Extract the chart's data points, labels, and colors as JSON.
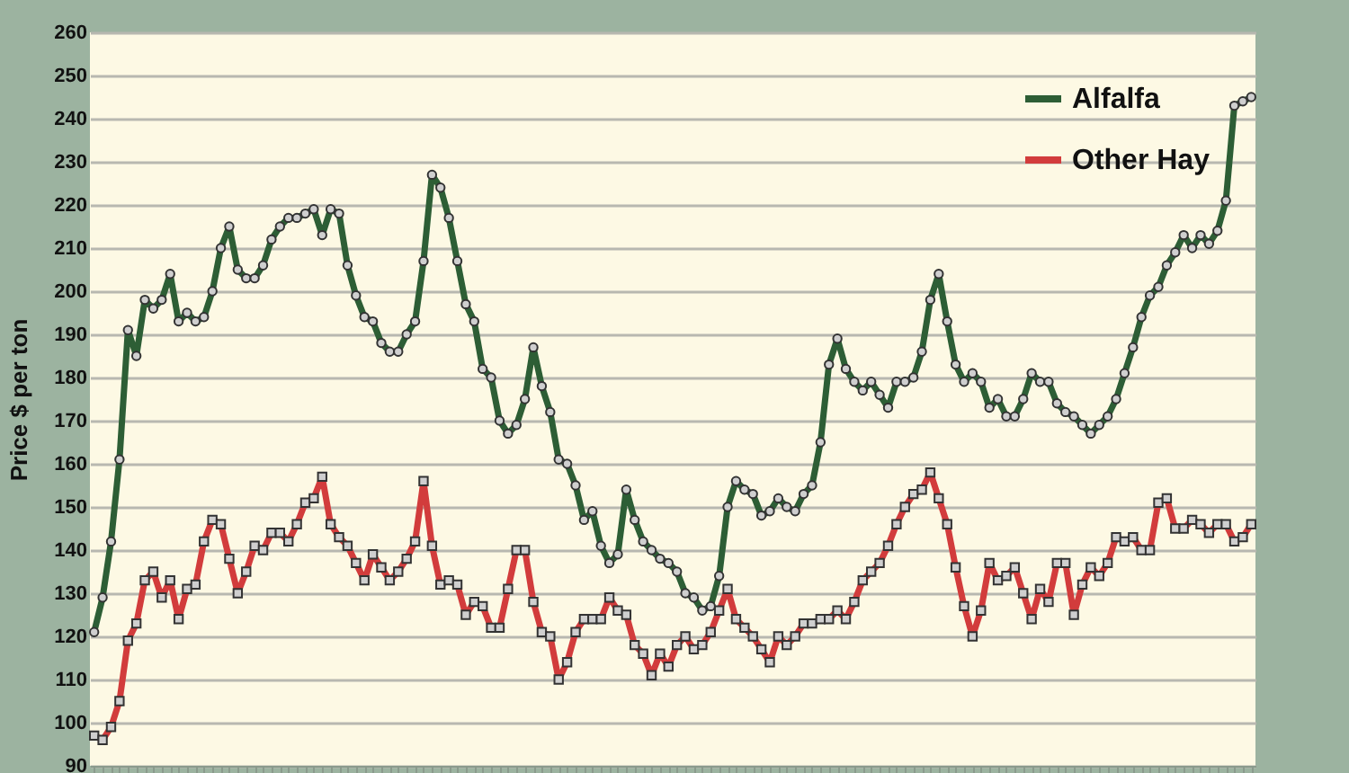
{
  "chart_data": {
    "type": "line",
    "ylabel": "Price $ per ton",
    "categories": [
      null,
      null,
      null,
      null,
      null,
      null,
      null,
      null,
      null,
      null,
      null,
      null,
      null,
      null,
      null,
      null,
      null,
      null,
      null,
      null,
      null,
      null,
      null,
      null,
      null,
      null,
      null,
      null,
      null,
      null,
      null,
      null,
      null,
      null,
      null,
      null,
      null,
      null,
      null,
      null,
      null,
      null,
      null,
      null,
      null,
      null,
      null,
      null,
      null,
      null,
      null,
      null,
      null,
      null,
      null,
      null,
      null,
      null,
      null,
      null,
      null,
      null,
      null,
      null,
      null,
      null,
      null,
      null,
      null,
      null,
      null,
      null,
      null,
      null,
      null,
      null,
      null,
      null,
      null,
      null,
      null,
      null,
      null,
      null,
      null,
      null,
      null,
      null,
      null,
      null,
      null,
      null,
      null,
      null,
      null,
      null,
      null,
      null,
      null,
      null,
      null,
      null,
      null,
      null,
      null,
      null,
      null,
      null,
      null,
      null,
      null,
      null,
      null,
      null,
      null,
      null,
      null,
      null,
      null,
      null,
      null,
      null,
      null,
      null,
      null,
      null,
      null,
      null,
      null,
      null,
      null,
      null,
      null,
      null,
      null,
      null,
      null,
      null
    ],
    "series": [
      {
        "name": "Alfalfa",
        "color": "#2d5e35",
        "marker": "circle",
        "values": [
          121,
          129,
          142,
          161,
          191,
          185,
          198,
          196,
          198,
          204,
          193,
          195,
          193,
          194,
          200,
          210,
          215,
          205,
          203,
          203,
          206,
          212,
          215,
          217,
          217,
          218,
          219,
          213,
          219,
          218,
          206,
          199,
          194,
          193,
          188,
          186,
          186,
          190,
          193,
          207,
          227,
          224,
          217,
          207,
          197,
          193,
          182,
          180,
          170,
          167,
          169,
          175,
          187,
          178,
          172,
          161,
          160,
          155,
          147,
          149,
          141,
          137,
          139,
          154,
          147,
          142,
          140,
          138,
          137,
          135,
          130,
          129,
          126,
          127,
          134,
          150,
          156,
          154,
          153,
          148,
          149,
          152,
          150,
          149,
          153,
          155,
          165,
          183,
          189,
          182,
          179,
          177,
          179,
          176,
          173,
          179,
          179,
          180,
          186,
          198,
          204,
          193,
          183,
          179,
          181,
          179,
          173,
          175,
          171,
          171,
          175,
          181,
          179,
          179,
          174,
          172,
          171,
          169,
          167,
          169,
          171,
          175,
          181,
          187,
          194,
          199,
          201,
          206,
          209,
          213,
          210,
          213,
          211,
          214,
          221,
          243,
          244,
          245
        ]
      },
      {
        "name": "Other Hay",
        "color": "#d23c3c",
        "marker": "square",
        "values": [
          97,
          96,
          99,
          105,
          119,
          123,
          133,
          135,
          129,
          133,
          124,
          131,
          132,
          142,
          147,
          146,
          138,
          130,
          135,
          141,
          140,
          144,
          144,
          142,
          146,
          151,
          152,
          157,
          146,
          143,
          141,
          137,
          133,
          139,
          136,
          133,
          135,
          138,
          142,
          156,
          141,
          132,
          133,
          132,
          125,
          128,
          127,
          122,
          122,
          131,
          140,
          140,
          128,
          121,
          120,
          110,
          114,
          121,
          124,
          124,
          124,
          129,
          126,
          125,
          118,
          116,
          111,
          116,
          113,
          118,
          120,
          117,
          118,
          121,
          126,
          131,
          124,
          122,
          120,
          117,
          114,
          120,
          118,
          120,
          123,
          123,
          124,
          124,
          126,
          124,
          128,
          133,
          135,
          137,
          141,
          146,
          150,
          153,
          154,
          158,
          152,
          146,
          136,
          127,
          120,
          126,
          137,
          133,
          134,
          136,
          130,
          124,
          131,
          128,
          137,
          137,
          125,
          132,
          136,
          134,
          137,
          143,
          142,
          143,
          140,
          140,
          151,
          152,
          145,
          145,
          147,
          146,
          144,
          146,
          146,
          142,
          143,
          146
        ]
      }
    ],
    "ylim": [
      90,
      260
    ],
    "yticks": [
      90,
      100,
      110,
      120,
      130,
      140,
      150,
      160,
      170,
      180,
      190,
      200,
      210,
      220,
      230,
      240,
      250,
      260
    ],
    "grid": "y",
    "legend": "top right",
    "tick_labels": "y",
    "line_style": "solid"
  }
}
